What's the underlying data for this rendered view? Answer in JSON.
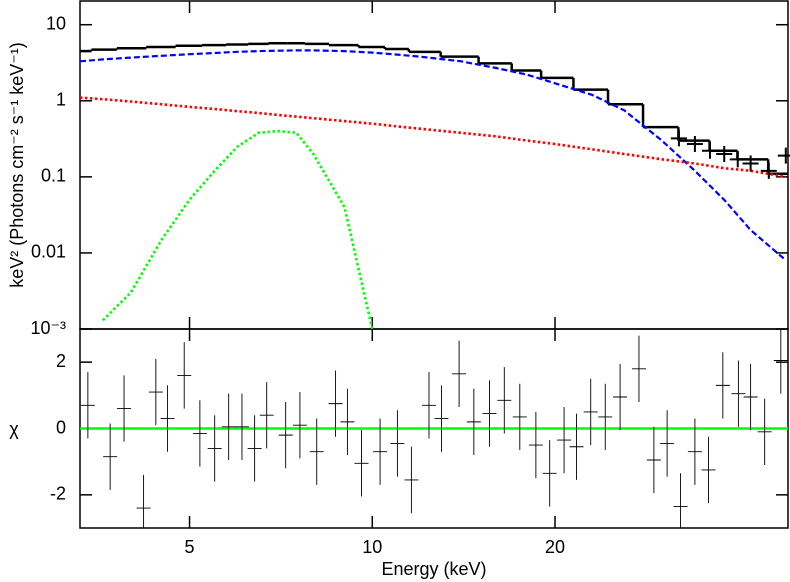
{
  "chart_data": [
    {
      "type": "line",
      "ylabel": "keV² (Photons cm⁻² s⁻¹ keV⁻¹)",
      "xscale": "log",
      "yscale": "log",
      "xlim": [
        3.3,
        48.4
      ],
      "ylim": [
        0.001,
        20.5
      ],
      "xticks": [
        5,
        10,
        20
      ],
      "yticks": [
        10,
        1,
        0.1,
        0.01,
        {
          "value": 0.001,
          "label": "10⁻³"
        }
      ],
      "x": [
        3.3,
        3.6,
        4,
        4.5,
        5,
        5.5,
        6,
        6.5,
        7,
        7.5,
        8,
        9,
        10,
        11,
        12,
        14,
        16,
        18,
        20,
        23,
        26,
        30,
        34,
        38,
        42,
        48
      ],
      "series": [
        {
          "color": "#000000",
          "style": "step",
          "values": [
            4.5,
            4.7,
            4.9,
            5.1,
            5.3,
            5.4,
            5.5,
            5.6,
            5.7,
            5.7,
            5.6,
            5.4,
            5.1,
            4.8,
            4.4,
            3.8,
            3.1,
            2.5,
            2.0,
            1.4,
            0.9,
            0.45,
            0.3,
            0.22,
            0.17,
            0.11
          ]
        },
        {
          "color": "#0000ff",
          "style": "dashed",
          "values": [
            3.3,
            3.5,
            3.7,
            3.9,
            4.1,
            4.25,
            4.4,
            4.5,
            4.55,
            4.6,
            4.6,
            4.5,
            4.3,
            4.05,
            3.8,
            3.3,
            2.7,
            2.2,
            1.7,
            1.2,
            0.75,
            0.3,
            0.12,
            0.05,
            0.02,
            0.008
          ]
        },
        {
          "color": "#ff0000",
          "style": "dotted",
          "values": [
            1.1,
            1.05,
            0.98,
            0.9,
            0.83,
            0.78,
            0.73,
            0.69,
            0.65,
            0.62,
            0.59,
            0.54,
            0.5,
            0.46,
            0.43,
            0.38,
            0.34,
            0.3,
            0.27,
            0.23,
            0.2,
            0.17,
            0.15,
            0.13,
            0.12,
            0.1
          ]
        },
        {
          "color": "#00ff00",
          "style": "dotted",
          "values": [
            null,
            0.0013,
            0.003,
            0.015,
            0.05,
            0.12,
            0.25,
            0.38,
            0.4,
            0.38,
            0.2,
            0.04,
            0.001,
            null,
            null,
            null,
            null,
            null,
            null,
            null,
            null,
            null,
            null,
            null,
            null,
            null
          ]
        },
        {
          "color": "#000000",
          "style": "cross",
          "x": [
            32,
            34,
            36,
            38,
            40,
            42,
            45,
            48
          ],
          "values": [
            0.32,
            0.27,
            0.22,
            0.2,
            0.17,
            0.15,
            0.12,
            0.19
          ]
        }
      ]
    },
    {
      "type": "scatter",
      "xlabel": "Energy (keV)",
      "ylabel": "χ",
      "xscale": "log",
      "xlim": [
        3.3,
        48.4
      ],
      "ylim": [
        -3,
        3
      ],
      "xticks": [
        5,
        10,
        20
      ],
      "yticks": [
        -2,
        0,
        2
      ],
      "hline": 0,
      "hline_color": "#00ff00",
      "series": [
        {
          "color": "#000000",
          "yerr": 1,
          "x": [
            3.4,
            3.7,
            3.9,
            4.2,
            4.4,
            4.6,
            4.9,
            5.2,
            5.5,
            5.8,
            6.1,
            6.4,
            6.7,
            7.2,
            7.6,
            8.1,
            8.7,
            9.1,
            9.6,
            10.3,
            11.0,
            11.6,
            12.4,
            13.0,
            13.9,
            14.7,
            15.6,
            16.5,
            17.5,
            18.6,
            19.6,
            20.7,
            21.7,
            22.9,
            24.2,
            25.6,
            27.5,
            29.1,
            30.6,
            32.2,
            34.0,
            35.8,
            37.8,
            40.1,
            42.0,
            44.3,
            47.1
          ],
          "values": [
            0.7,
            -0.85,
            0.6,
            -2.4,
            1.1,
            0.3,
            1.6,
            -0.15,
            -0.6,
            0.05,
            0.05,
            -0.6,
            0.4,
            -0.2,
            0.1,
            -0.7,
            0.75,
            0.2,
            -1.05,
            -0.7,
            -0.45,
            -1.55,
            0.7,
            0.3,
            1.65,
            0.2,
            0.45,
            0.85,
            0.35,
            -0.5,
            -1.35,
            -0.35,
            -0.55,
            0.5,
            0.35,
            0.95,
            1.8,
            -0.95,
            -0.45,
            -2.35,
            -0.7,
            -1.25,
            1.3,
            1.05,
            0.95,
            -0.1,
            2.05
          ]
        }
      ]
    }
  ]
}
